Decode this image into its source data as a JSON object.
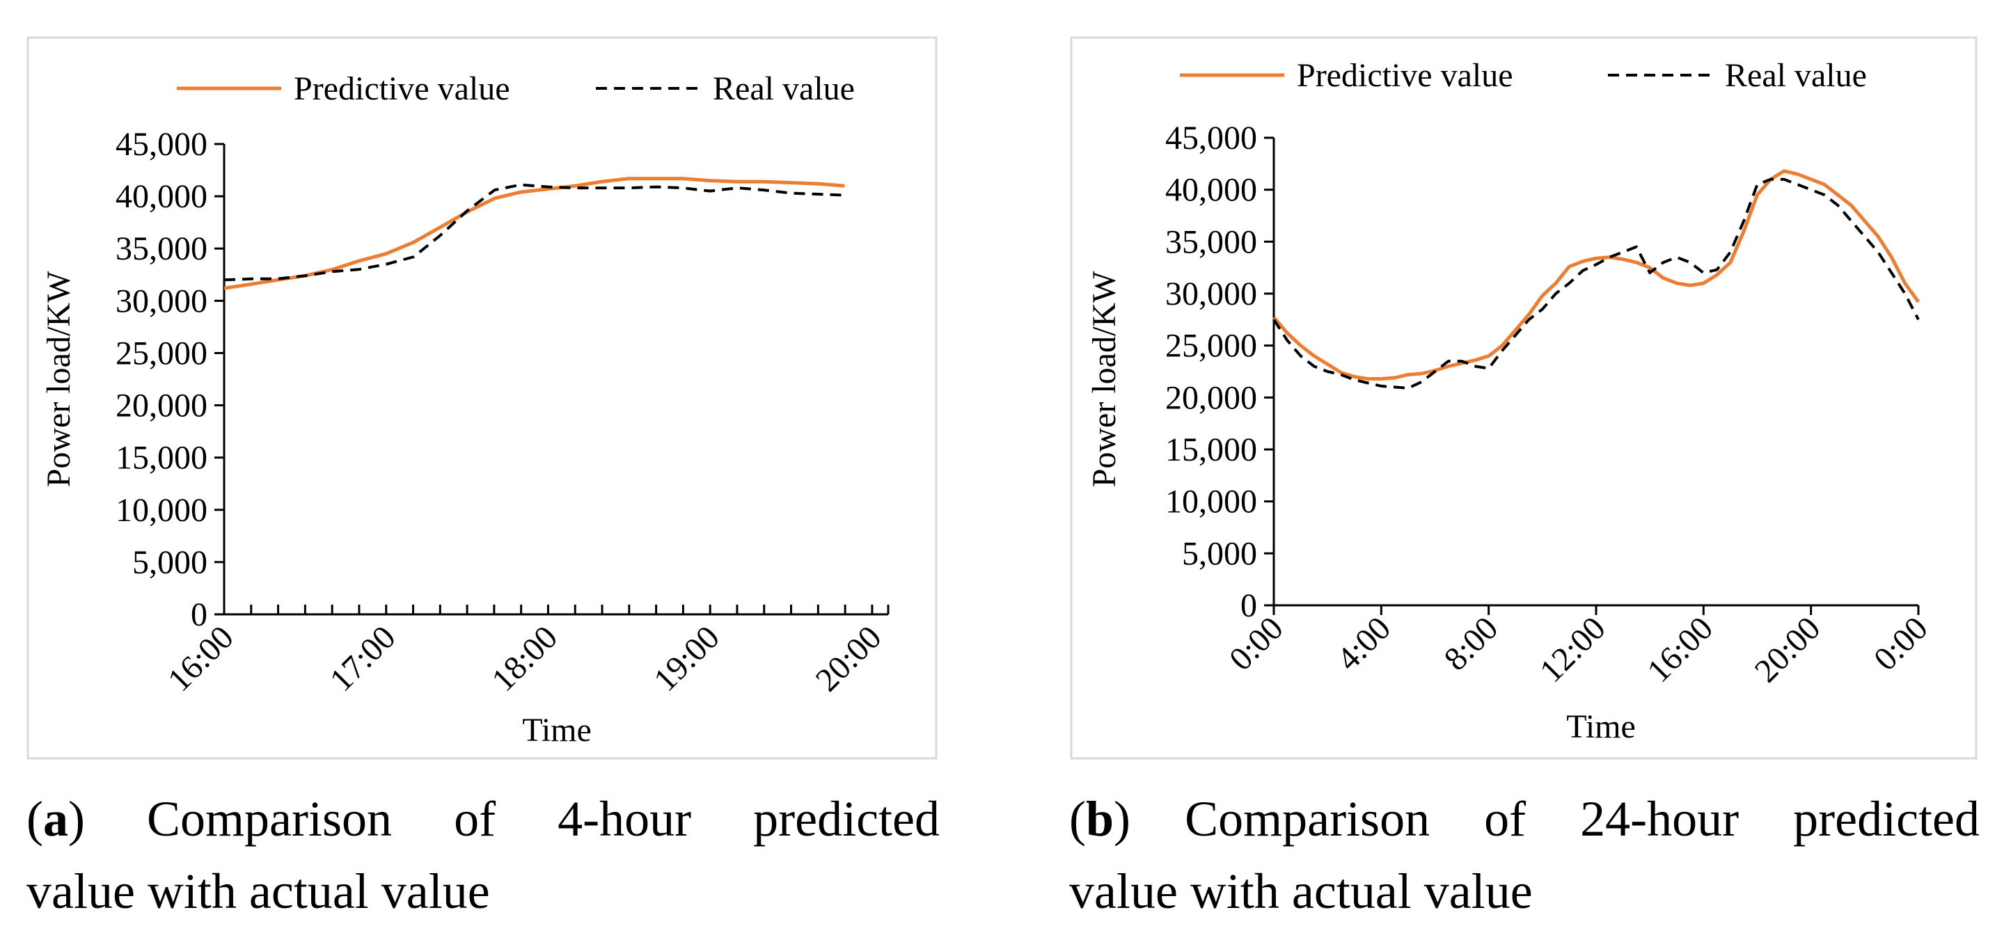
{
  "colors": {
    "predictive": "#ED7D31",
    "real": "#000000",
    "axis": "#000000",
    "frame": "#D9D9D9"
  },
  "captions": {
    "a": {
      "open": "(",
      "letter": "a",
      "close": ")",
      "line1": "Comparison of 4-hour predicted",
      "line2": "value with actual value"
    },
    "b": {
      "open": "(",
      "letter": "b",
      "close": ")",
      "line1": "Comparison of 24-hour predicted",
      "line2": "value with actual value"
    }
  },
  "chart_data": [
    {
      "type": "line",
      "ylabel": "Power load/KW",
      "xlabel": "Time",
      "ylim": [
        0,
        45000
      ],
      "yticks": [
        0,
        5000,
        10000,
        15000,
        20000,
        25000,
        30000,
        35000,
        40000,
        45000
      ],
      "ytick_labels": [
        "0",
        "5,000",
        "10,000",
        "15,000",
        "20,000",
        "25,000",
        "30,000",
        "35,000",
        "40,000",
        "45,000"
      ],
      "xlim": [
        16,
        20.1
      ],
      "xticks": [
        16,
        17,
        18,
        19,
        20
      ],
      "xtick_labels": [
        "16:00",
        "17:00",
        "18:00",
        "19:00",
        "20:00"
      ],
      "legend": [
        "Predictive value",
        "Real value"
      ],
      "legend_position": "top",
      "minor_tick_step": 0.1667,
      "series": [
        {
          "name": "Predictive value",
          "style": "solid",
          "x": [
            16.0,
            16.17,
            16.33,
            16.5,
            16.67,
            16.83,
            17.0,
            17.17,
            17.33,
            17.5,
            17.67,
            17.83,
            18.0,
            18.17,
            18.33,
            18.5,
            18.67,
            18.83,
            19.0,
            19.17,
            19.33,
            19.5,
            19.67,
            19.83
          ],
          "values": [
            31200,
            31600,
            32000,
            32400,
            33000,
            33800,
            34500,
            35600,
            37000,
            38500,
            39800,
            40400,
            40700,
            41000,
            41400,
            41700,
            41700,
            41700,
            41500,
            41400,
            41400,
            41300,
            41200,
            41000
          ]
        },
        {
          "name": "Real value",
          "style": "dashed",
          "x": [
            16.0,
            16.17,
            16.33,
            16.5,
            16.67,
            16.83,
            17.0,
            17.17,
            17.33,
            17.5,
            17.67,
            17.83,
            18.0,
            18.17,
            18.33,
            18.5,
            18.67,
            18.83,
            19.0,
            19.17,
            19.33,
            19.5,
            19.67,
            19.83
          ],
          "values": [
            32000,
            32100,
            32100,
            32400,
            32800,
            33000,
            33500,
            34200,
            36200,
            38600,
            40600,
            41100,
            40900,
            40800,
            40800,
            40800,
            40900,
            40800,
            40500,
            40800,
            40600,
            40300,
            40200,
            40100
          ]
        }
      ]
    },
    {
      "type": "line",
      "ylabel": "Power load/KW",
      "xlabel": "Time",
      "ylim": [
        0,
        45000
      ],
      "yticks": [
        0,
        5000,
        10000,
        15000,
        20000,
        25000,
        30000,
        35000,
        40000,
        45000
      ],
      "ytick_labels": [
        "0",
        "5,000",
        "10,000",
        "15,000",
        "20,000",
        "25,000",
        "30,000",
        "35,000",
        "40,000",
        "45,000"
      ],
      "xlim": [
        0,
        24
      ],
      "xticks": [
        0,
        4,
        8,
        12,
        16,
        20,
        24
      ],
      "xtick_labels": [
        "0:00",
        "4:00",
        "8:00",
        "12:00",
        "16:00",
        "20:00",
        "0:00"
      ],
      "legend": [
        "Predictive value",
        "Real value"
      ],
      "legend_position": "top",
      "series": [
        {
          "name": "Predictive value",
          "style": "solid",
          "x": [
            0,
            0.5,
            1,
            1.5,
            2,
            2.5,
            3,
            3.5,
            4,
            4.5,
            5,
            5.5,
            6,
            6.5,
            7,
            7.5,
            8,
            8.5,
            9,
            9.5,
            10,
            10.5,
            11,
            11.5,
            12,
            12.5,
            13,
            13.5,
            14,
            14.5,
            15,
            15.5,
            16,
            16.5,
            17,
            17.5,
            18,
            18.5,
            19,
            19.5,
            20,
            20.5,
            21,
            21.5,
            22,
            22.5,
            23,
            23.5,
            24
          ],
          "values": [
            27700,
            26200,
            25000,
            24000,
            23200,
            22400,
            22000,
            21800,
            21800,
            21900,
            22200,
            22300,
            22600,
            23000,
            23300,
            23600,
            24000,
            25000,
            26500,
            28000,
            29800,
            31000,
            32600,
            33100,
            33400,
            33500,
            33300,
            33000,
            32500,
            31500,
            31000,
            30800,
            31000,
            31800,
            33000,
            36000,
            39500,
            41000,
            41800,
            41500,
            41000,
            40500,
            39500,
            38500,
            37000,
            35500,
            33500,
            31000,
            29200
          ]
        },
        {
          "name": "Real value",
          "style": "dashed",
          "x": [
            0,
            0.5,
            1,
            1.5,
            2,
            2.5,
            3,
            3.5,
            4,
            4.5,
            5,
            5.5,
            6,
            6.5,
            7,
            7.5,
            8,
            8.5,
            9,
            9.5,
            10,
            10.5,
            11,
            11.5,
            12,
            12.5,
            13,
            13.5,
            14,
            14.5,
            15,
            15.5,
            16,
            16.5,
            17,
            17.5,
            18,
            18.5,
            19,
            19.5,
            20,
            20.5,
            21,
            21.5,
            22,
            22.5,
            23,
            23.5,
            24
          ],
          "values": [
            27500,
            25500,
            24000,
            23000,
            22500,
            22200,
            21700,
            21400,
            21100,
            21000,
            20900,
            21500,
            22500,
            23500,
            23500,
            23000,
            22800,
            24500,
            26000,
            27500,
            28500,
            30000,
            31000,
            32200,
            32800,
            33500,
            34000,
            34500,
            32000,
            33000,
            33500,
            33000,
            32000,
            32300,
            34000,
            37000,
            40500,
            41000,
            41000,
            40500,
            40000,
            39500,
            38500,
            37000,
            35500,
            34000,
            32000,
            30000,
            27500
          ]
        }
      ]
    }
  ]
}
